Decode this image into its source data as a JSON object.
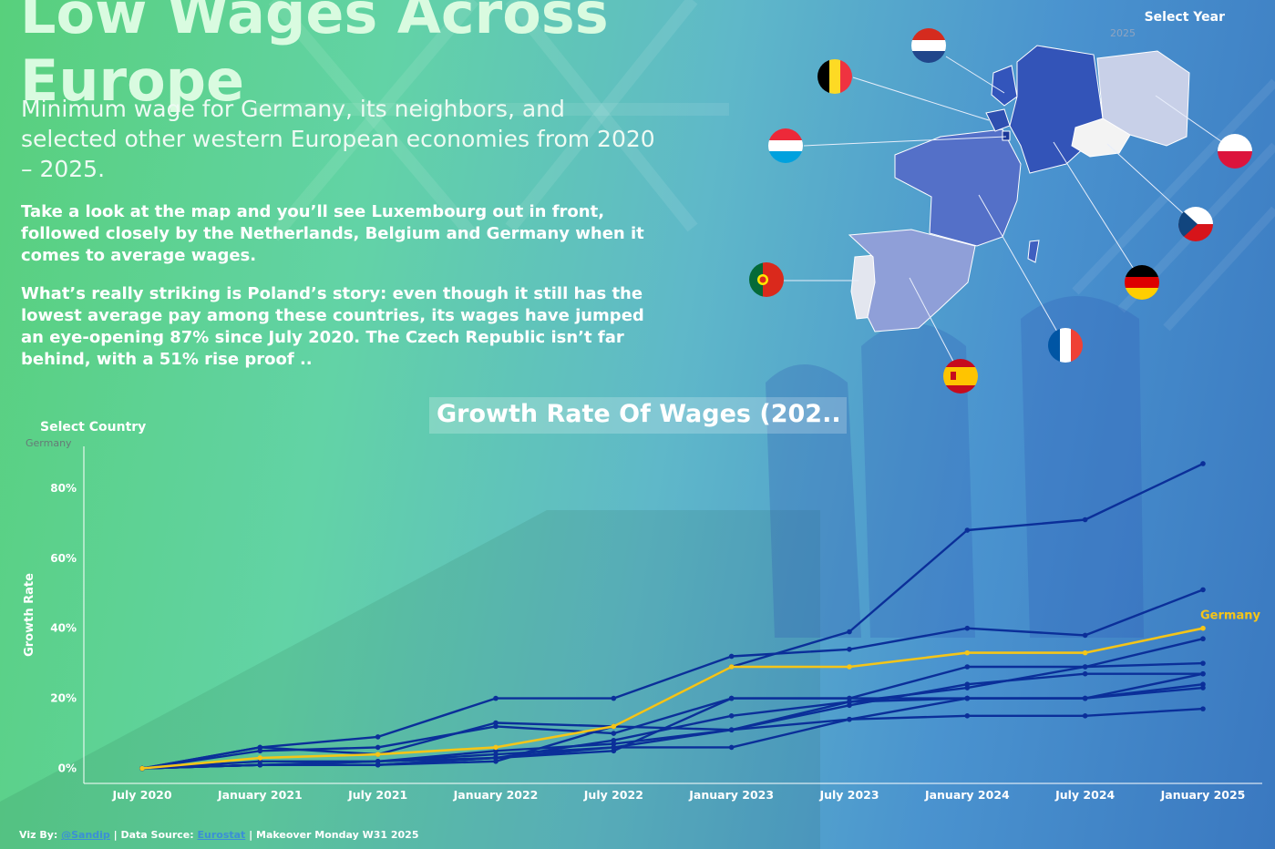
{
  "title": "Low Wages Across Europe",
  "subtitle": "Minimum wage for Germany, its neighbors, and selected other western European economies from 2020 – 2025.",
  "paragraph1": "Take a look at the map and you’ll see Luxembourg out in front, followed closely by the Netherlands, Belgium and Germany when it comes to average wages.",
  "paragraph2": "What’s really striking is Poland’s story: even though it still has the lowest average pay among these countries, its wages have jumped an eye-opening 87% since July 2020. The Czech Republic isn’t far behind, with a 51% rise proof ..",
  "year_filter": {
    "label": "Select Year",
    "value": "2025"
  },
  "country_filter": {
    "label": "Select Country",
    "value": "Germany"
  },
  "map": {
    "flags": [
      "netherlands-flag",
      "belgium-flag",
      "luxembourg-flag",
      "portugal-flag",
      "spain-flag",
      "france-flag",
      "germany-flag",
      "czech-flag",
      "poland-flag"
    ]
  },
  "chart_data": {
    "type": "line",
    "title": "Growth Rate Of Wages (202..",
    "ylabel": "Growth Rate",
    "xlabel": "",
    "x": [
      "July 2020",
      "January 2021",
      "July 2021",
      "January 2022",
      "July 2022",
      "January 2023",
      "July 2023",
      "January 2024",
      "July 2024",
      "January 2025"
    ],
    "yticks": [
      "0%",
      "20%",
      "40%",
      "60%",
      "80%"
    ],
    "ylim": [
      0,
      90
    ],
    "highlight": "Germany",
    "highlight_color": "#f5c518",
    "series_color": "#0b2f99",
    "series": [
      {
        "name": "Germany",
        "values": [
          0,
          3,
          4,
          6,
          12,
          29,
          29,
          33,
          33,
          40
        ]
      },
      {
        "values": [
          0,
          1,
          1,
          2,
          12,
          29,
          39,
          68,
          71,
          87
        ]
      },
      {
        "values": [
          0,
          6,
          9,
          20,
          20,
          32,
          34,
          40,
          38,
          51
        ]
      },
      {
        "values": [
          0,
          5,
          6,
          12,
          10,
          20,
          20,
          29,
          29,
          37
        ]
      },
      {
        "values": [
          0,
          2,
          2,
          5,
          7,
          11,
          19,
          23,
          29,
          30
        ]
      },
      {
        "values": [
          0,
          1,
          1,
          3,
          5,
          20,
          20,
          20,
          20,
          27
        ]
      },
      {
        "values": [
          0,
          6,
          4,
          13,
          12,
          11,
          18,
          24,
          27,
          27
        ]
      },
      {
        "values": [
          0,
          1,
          2,
          3,
          8,
          15,
          19,
          20,
          20,
          24
        ]
      },
      {
        "values": [
          0,
          1,
          1,
          3,
          6,
          6,
          14,
          15,
          15,
          17
        ]
      },
      {
        "values": [
          0,
          1,
          2,
          4,
          6,
          11,
          14,
          20,
          20,
          23
        ]
      }
    ]
  },
  "footer": {
    "prefix": "Viz By: ",
    "author": "@Sandip",
    "mid": " | Data Source: ",
    "source": "Eurostat",
    "suffix": "  | Makeover Monday W31 2025"
  }
}
